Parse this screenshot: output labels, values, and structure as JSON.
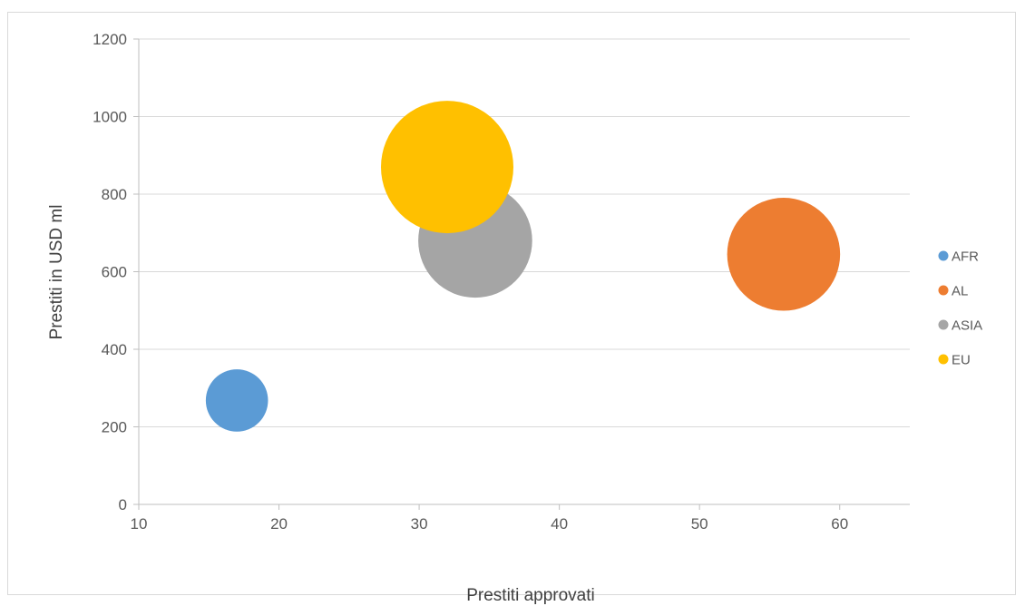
{
  "chart_data": {
    "type": "bubble",
    "title": "",
    "xlabel": "Prestiti approvati",
    "ylabel": "Prestiti in USD ml",
    "xlim": [
      10,
      65
    ],
    "ylim": [
      0,
      1200
    ],
    "xticks": [
      10,
      20,
      30,
      40,
      50,
      60
    ],
    "yticks": [
      0,
      200,
      400,
      600,
      800,
      1000,
      1200
    ],
    "grid": "horizontal",
    "legend_position": "right",
    "series": [
      {
        "name": "AFR",
        "color": "#5b9bd5",
        "x": 17,
        "y": 268,
        "size": 17
      },
      {
        "name": "AL",
        "color": "#ed7d31",
        "x": 56,
        "y": 645,
        "size": 56
      },
      {
        "name": "ASIA",
        "color": "#a5a5a5",
        "x": 34,
        "y": 680,
        "size": 57
      },
      {
        "name": "EU",
        "color": "#ffc000",
        "x": 32,
        "y": 870,
        "size": 77
      }
    ],
    "draw_order": [
      "AFR",
      "AL",
      "ASIA",
      "EU"
    ]
  }
}
